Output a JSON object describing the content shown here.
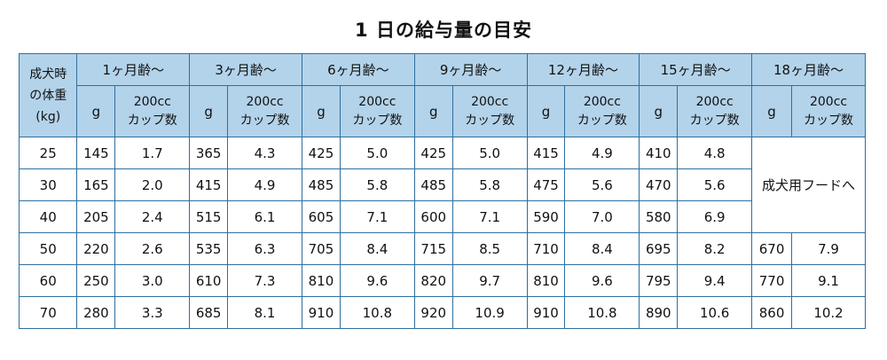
{
  "title": "1 日の給与量の目安",
  "corner": {
    "line1": "成犬時",
    "line2": "の体重",
    "line3": "(kg)"
  },
  "ages": [
    "1ヶ月齢〜",
    "3ヶ月齢〜",
    "6ヶ月齢〜",
    "9ヶ月齢〜",
    "12ヶ月齢〜",
    "15ヶ月齢〜",
    "18ヶ月齢〜"
  ],
  "sub_headers": {
    "grams": "g",
    "cups_line1": "200cc",
    "cups_line2": "カップ数"
  },
  "adult_food_note": "成犬用フードへ",
  "rows": [
    {
      "weight": "25",
      "cells": [
        [
          "145",
          "1.7"
        ],
        [
          "365",
          "4.3"
        ],
        [
          "425",
          "5.0"
        ],
        [
          "425",
          "5.0"
        ],
        [
          "415",
          "4.9"
        ],
        [
          "410",
          "4.8"
        ]
      ]
    },
    {
      "weight": "30",
      "cells": [
        [
          "165",
          "2.0"
        ],
        [
          "415",
          "4.9"
        ],
        [
          "485",
          "5.8"
        ],
        [
          "485",
          "5.8"
        ],
        [
          "475",
          "5.6"
        ],
        [
          "470",
          "5.6"
        ]
      ]
    },
    {
      "weight": "40",
      "cells": [
        [
          "205",
          "2.4"
        ],
        [
          "515",
          "6.1"
        ],
        [
          "605",
          "7.1"
        ],
        [
          "600",
          "7.1"
        ],
        [
          "590",
          "7.0"
        ],
        [
          "580",
          "6.9"
        ]
      ]
    },
    {
      "weight": "50",
      "cells": [
        [
          "220",
          "2.6"
        ],
        [
          "535",
          "6.3"
        ],
        [
          "705",
          "8.4"
        ],
        [
          "715",
          "8.5"
        ],
        [
          "710",
          "8.4"
        ],
        [
          "695",
          "8.2"
        ],
        [
          "670",
          "7.9"
        ]
      ]
    },
    {
      "weight": "60",
      "cells": [
        [
          "250",
          "3.0"
        ],
        [
          "610",
          "7.3"
        ],
        [
          "810",
          "9.6"
        ],
        [
          "820",
          "9.7"
        ],
        [
          "810",
          "9.6"
        ],
        [
          "795",
          "9.4"
        ],
        [
          "770",
          "9.1"
        ]
      ]
    },
    {
      "weight": "70",
      "cells": [
        [
          "280",
          "3.3"
        ],
        [
          "685",
          "8.1"
        ],
        [
          "910",
          "10.8"
        ],
        [
          "920",
          "10.9"
        ],
        [
          "910",
          "10.8"
        ],
        [
          "890",
          "10.6"
        ],
        [
          "860",
          "10.2"
        ]
      ]
    }
  ]
}
